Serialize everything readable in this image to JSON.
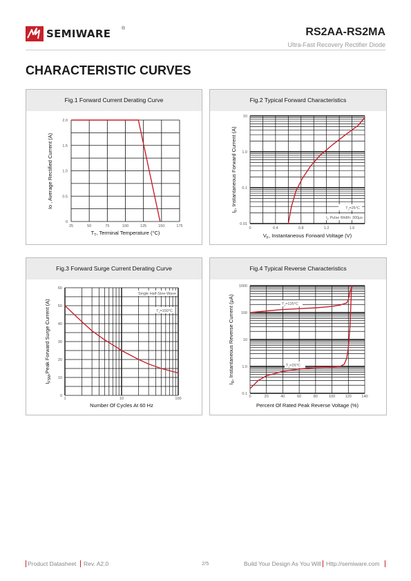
{
  "header": {
    "brand": "SEMIWARE",
    "registered": "®",
    "model": "RS2AA-RS2MA",
    "subtitle": "Ultra-Fast Recovery Rectifier Diode"
  },
  "section_title": "CHARACTERISTIC CURVES",
  "colors": {
    "brand_red": "#c8202a",
    "curve": "#c8202a",
    "grid": "#111111",
    "panel_header": "#ebebeb"
  },
  "icons": {
    "logo": "semiware-logo-icon"
  },
  "figures": {
    "fig1": {
      "title": "Fig.1 Forward Current Derating Curve",
      "ylabel": "Io , Average Rectified Current (A)",
      "xlabel_main": "T",
      "xlabel_sub": "T",
      "xlabel_rest": ", Terminal Temperature (°C)"
    },
    "fig2": {
      "title": "Fig.2 Typical Forward Characteristics",
      "ylabel_main": "I",
      "ylabel_sub": "F",
      "ylabel_rest": ", Instantaneous Forward Current (A)",
      "xlabel_main": "V",
      "xlabel_sub": "F",
      "xlabel_rest": ", Instantaneous Forward Voltage (V)",
      "note1_main": "T",
      "note1_sub": "J",
      "note1_rest": "=25°C",
      "note2": "I",
      "note2_sub": "F",
      "note2_rest": " Pulse Width: 300μs"
    },
    "fig3": {
      "title": "Fig.3 Forward Surge Current Derating Curve",
      "ylabel_main": "I",
      "ylabel_sub": "FSM",
      "ylabel_rest": ",Peak Forward Surge Current (A)",
      "xlabel": "Number Of Cycles At 60 Hz",
      "note1": "Single Half-Sine-Wave",
      "note2_main": "T",
      "note2_sub": "J",
      "note2_rest": "=150°C"
    },
    "fig4": {
      "title": "Fig.4 Typical Reverse Characteristics",
      "ylabel_main": "I",
      "ylabel_sub": "R",
      "ylabel_rest": ", Instantaneous Reverse Current (μA)",
      "xlabel": "Percent Of Rated Peak Reverse Voltage (%)",
      "note1_main": "T",
      "note1_sub": "J",
      "note1_rest": "=125°C",
      "note2_main": "T",
      "note2_sub": "J",
      "note2_rest": "=25°C"
    }
  },
  "chart_data": [
    {
      "type": "line",
      "title": "Fig.1 Forward Current Derating Curve",
      "xlabel": "TT, Terminal Temperature (°C)",
      "ylabel": "Io , Average Rectified Current (A)",
      "xlim": [
        25,
        175
      ],
      "ylim": [
        0,
        2.0
      ],
      "xticks": [
        "25",
        "50",
        "75",
        "100",
        "125",
        "150",
        "175"
      ],
      "yticks": [
        "0",
        "0.5",
        "1.0",
        "1.5",
        "2.0"
      ],
      "series": [
        {
          "x": [
            25,
            118,
            148
          ],
          "y": [
            2.0,
            2.0,
            0
          ]
        }
      ]
    },
    {
      "type": "line",
      "title": "Fig.2 Typical Forward Characteristics",
      "xlabel": "VF, Instantaneous Forward Voltage (V)",
      "ylabel": "IF, Instantaneous Forward Current (A)",
      "xlim": [
        0,
        1.8
      ],
      "ylim": [
        0.01,
        10
      ],
      "yscale": "log",
      "xticks": [
        "0",
        "0.4",
        "0.8",
        "1.2",
        "1.6"
      ],
      "yticks": [
        "0.01",
        "0.1",
        "1.0",
        "10"
      ],
      "series": [
        {
          "x": [
            0.6,
            0.65,
            0.72,
            0.82,
            0.95,
            1.1,
            1.3,
            1.5,
            1.7,
            1.85
          ],
          "y": [
            0.01,
            0.03,
            0.08,
            0.18,
            0.4,
            0.8,
            1.6,
            3.0,
            5.5,
            9.0
          ]
        }
      ]
    },
    {
      "type": "line",
      "title": "Fig.3 Forward Surge Current Derating Curve",
      "xlabel": "Number Of Cycles At 60 Hz",
      "ylabel": "IFSM,Peak Forward Surge Current (A)",
      "xlim": [
        1,
        100
      ],
      "ylim": [
        0,
        60
      ],
      "xscale": "log",
      "xticks": [
        "1",
        "10",
        "100"
      ],
      "yticks": [
        "0",
        "10",
        "20",
        "30",
        "40",
        "50",
        "60"
      ],
      "series": [
        {
          "x": [
            1,
            2,
            3,
            5,
            8,
            10,
            20,
            30,
            50,
            100
          ],
          "y": [
            50,
            41,
            36,
            31,
            27,
            25,
            20,
            17.5,
            15,
            12.5
          ]
        }
      ]
    },
    {
      "type": "line",
      "title": "Fig.4 Typical Reverse Characteristics",
      "xlabel": "Percent Of Rated Peak Reverse Voltage (%)",
      "ylabel": "IR, Instantaneous Reverse Current (μA)",
      "xlim": [
        0,
        140
      ],
      "ylim": [
        0.1,
        1000
      ],
      "yscale": "log",
      "xticks": [
        "0",
        "20",
        "40",
        "60",
        "80",
        "100",
        "120",
        "140"
      ],
      "yticks": [
        "0.1",
        "1.0",
        "10",
        "100",
        "1000"
      ],
      "series": [
        {
          "name": "TJ=125°C",
          "x": [
            0,
            20,
            40,
            60,
            80,
            100,
            110,
            118,
            120,
            122,
            125
          ],
          "y": [
            100,
            115,
            130,
            140,
            150,
            170,
            190,
            230,
            300,
            600,
            1000
          ]
        },
        {
          "name": "TJ=25°C",
          "x": [
            0,
            10,
            20,
            40,
            60,
            80,
            100,
            110,
            115,
            118,
            120,
            122,
            124
          ],
          "y": [
            0.15,
            0.3,
            0.45,
            0.65,
            0.8,
            0.9,
            0.95,
            1.0,
            1.2,
            2.0,
            5.0,
            30,
            1000
          ]
        }
      ]
    }
  ],
  "footer": {
    "product": "Product Datasheet",
    "rev": "Rev. A2.0",
    "page": "2/5",
    "slogan": "Build Your Design As You Will",
    "url": "Http://semiware.com"
  }
}
